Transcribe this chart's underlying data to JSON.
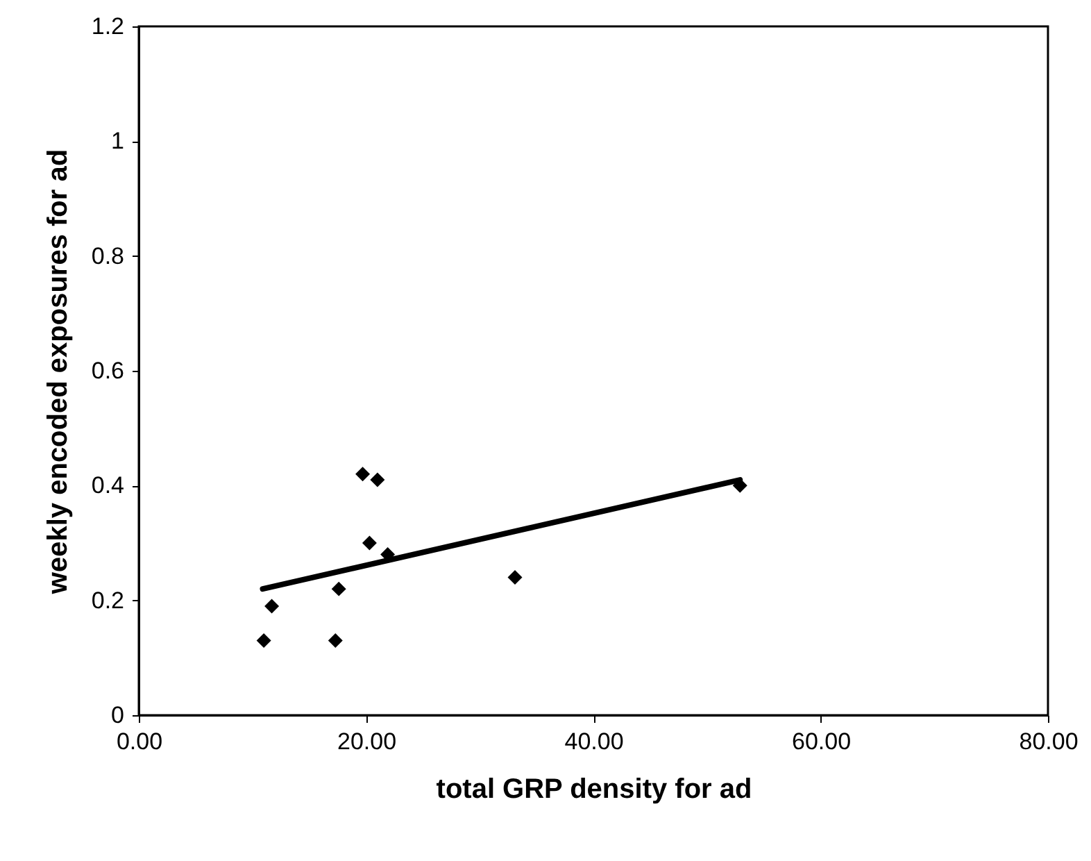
{
  "chart_data": {
    "type": "scatter",
    "xlabel": "total GRP density for ad",
    "ylabel": "weekly encoded exposures for ad",
    "xlim": [
      0,
      80
    ],
    "xticks": [
      {
        "value": 0,
        "label": "0.00"
      },
      {
        "value": 20,
        "label": "20.00"
      },
      {
        "value": 40,
        "label": "40.00"
      },
      {
        "value": 60,
        "label": "60.00"
      },
      {
        "value": 80,
        "label": "80.00"
      }
    ],
    "ylim": [
      0,
      1.2
    ],
    "yticks": [
      0,
      0.2,
      0.4,
      0.6,
      0.8,
      1,
      1.2
    ],
    "grid": false,
    "marker": "diamond",
    "series": [
      {
        "type": "scatter",
        "color": "#000000",
        "x": [
          11.0,
          11.7,
          17.3,
          17.6,
          19.7,
          21.0,
          20.3,
          21.9,
          33.1,
          52.9
        ],
        "values": [
          0.13,
          0.19,
          0.13,
          0.22,
          0.42,
          0.41,
          0.3,
          0.28,
          0.24,
          0.4
        ]
      },
      {
        "type": "line",
        "color": "#000000",
        "x": [
          10.9,
          52.9
        ],
        "values": [
          0.22,
          0.41
        ],
        "line_style": "solid",
        "marker": "none"
      }
    ]
  }
}
